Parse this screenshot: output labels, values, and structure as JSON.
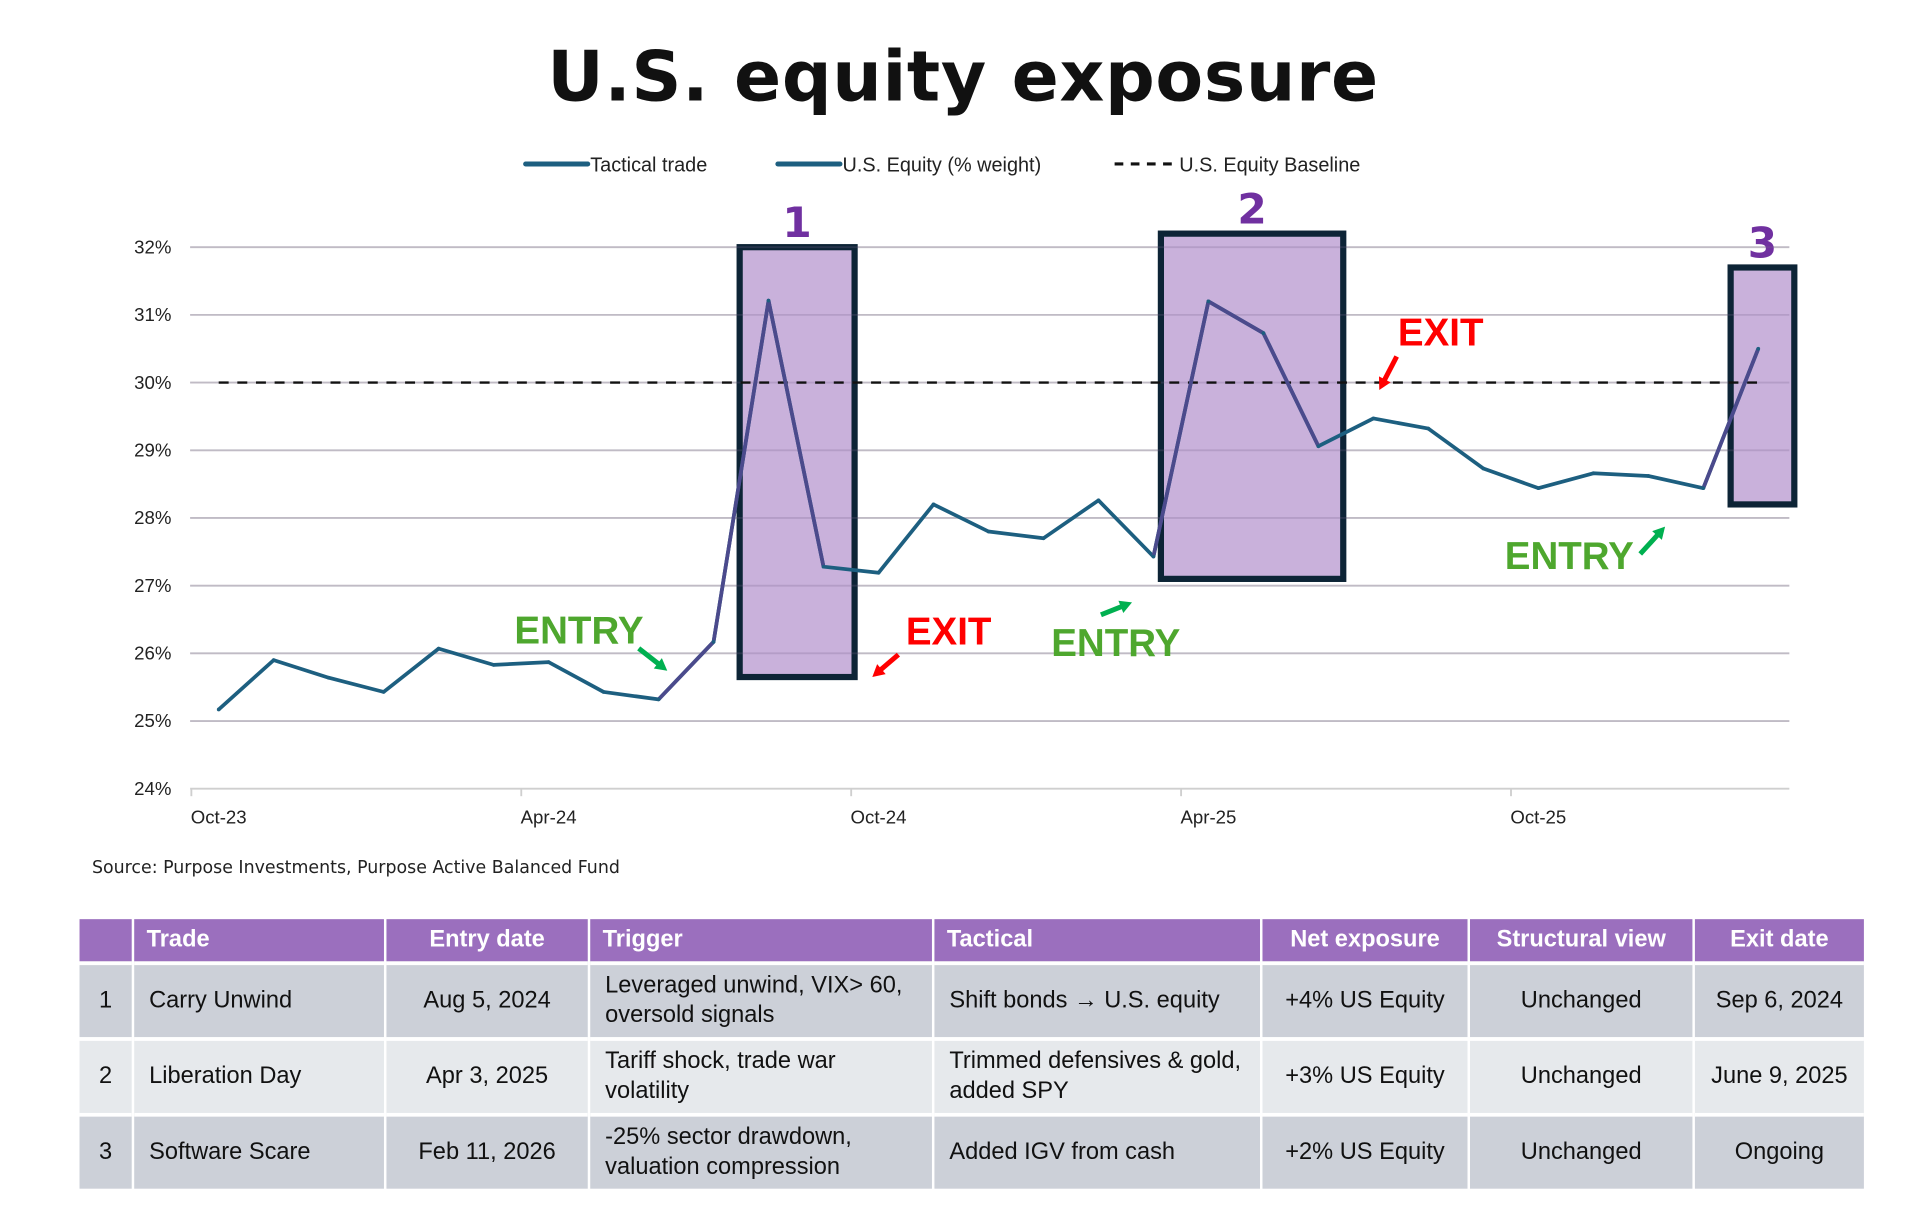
{
  "title": "U.S. equity exposure",
  "source": "Source: Purpose Investments, Purpose Active Balanced Fund",
  "chart_data": {
    "type": "line",
    "title": "U.S. equity exposure",
    "legend_position": "top",
    "legend": [
      "Tactical trade",
      "U.S. Equity (% weight)",
      "U.S. Equity Baseline"
    ],
    "colors": {
      "equity": "#1d5f80",
      "tactical": "#4b4a8c",
      "baseline": "#111111",
      "box_fill": "#c9b1db",
      "box_border": "#0d2436",
      "box_label": "#7030a0",
      "entry": "#4ea72e",
      "exit": "#ff0000",
      "entry_arrow": "#00b050"
    },
    "x_categories": [
      "Oct-23",
      "Nov-23",
      "Dec-23",
      "Jan-24",
      "Feb-24",
      "Mar-24",
      "Apr-24",
      "May-24",
      "Jun-24",
      "Jul-24",
      "Aug-24",
      "Sep-24",
      "Oct-24",
      "Nov-24",
      "Dec-24",
      "Jan-25",
      "Feb-25",
      "Mar-25",
      "Apr-25",
      "May-25",
      "Jun-25",
      "Jul-25",
      "Aug-25",
      "Sep-25",
      "Oct-25",
      "Nov-25",
      "Dec-25",
      "Jan-26",
      "Feb-26"
    ],
    "x_tick_labels": [
      "Oct-23",
      "Apr-24",
      "Oct-24",
      "Apr-25",
      "Oct-25"
    ],
    "y_ticks": [
      "24%",
      "25%",
      "26%",
      "27%",
      "28%",
      "29%",
      "30%",
      "31%",
      "32%"
    ],
    "ylim": [
      24,
      32
    ],
    "grid": true,
    "series": [
      {
        "name": "U.S. Equity (% weight)",
        "values": [
          25.17,
          25.9,
          25.64,
          25.43,
          26.07,
          25.83,
          25.87,
          25.43,
          25.32,
          26.17,
          31.21,
          27.28,
          27.19,
          28.2,
          27.8,
          27.7,
          28.26,
          27.43,
          31.2,
          30.73,
          29.06,
          29.47,
          29.32,
          28.73,
          28.44,
          28.66,
          28.62,
          28.44,
          30.5
        ]
      },
      {
        "name": "Tactical trade",
        "values": [
          null,
          null,
          null,
          null,
          null,
          null,
          null,
          null,
          25.32,
          26.17,
          31.21,
          27.28,
          null,
          null,
          null,
          null,
          null,
          27.43,
          31.2,
          30.73,
          29.06,
          null,
          null,
          null,
          null,
          null,
          null,
          28.44,
          30.5
        ]
      },
      {
        "name": "U.S. Equity Baseline",
        "values": [
          30,
          30,
          30,
          30,
          30,
          30,
          30,
          30,
          30,
          30,
          30,
          30,
          30,
          30,
          30,
          30,
          30,
          30,
          30,
          30,
          30,
          30,
          30,
          30,
          30,
          30,
          30,
          30,
          30
        ]
      }
    ],
    "highlight_boxes": [
      {
        "label": "1",
        "from": "Jul-24",
        "to": "Sep-24",
        "y_range": [
          25.65,
          32.0
        ]
      },
      {
        "label": "2",
        "from": "Mar-25",
        "to": "Jun-25",
        "y_range": [
          27.1,
          32.2
        ]
      },
      {
        "label": "3",
        "from": "Jan-26",
        "to": "Feb-26",
        "y_range": [
          28.2,
          31.7
        ]
      }
    ],
    "annotations": [
      {
        "text": "ENTRY",
        "type": "entry"
      },
      {
        "text": "EXIT",
        "type": "exit"
      },
      {
        "text": "ENTRY",
        "type": "entry"
      },
      {
        "text": "EXIT",
        "type": "exit"
      },
      {
        "text": "ENTRY",
        "type": "entry"
      }
    ]
  },
  "table": {
    "headers": [
      "",
      "Trade",
      "Entry date",
      "Trigger",
      "Tactical",
      "Net exposure",
      "Structural view",
      "Exit date"
    ],
    "rows": [
      [
        "1",
        "Carry Unwind",
        "Aug 5, 2024",
        "Leveraged unwind, VIX> 60, oversold signals",
        "Shift bonds → U.S. equity",
        "+4% US Equity",
        "Unchanged",
        "Sep 6, 2024"
      ],
      [
        "2",
        "Liberation Day",
        "Apr 3, 2025",
        "Tariff shock, trade war volatility",
        "Trimmed defensives & gold, added SPY",
        "+3% US Equity",
        "Unchanged",
        "June 9, 2025"
      ],
      [
        "3",
        "Software Scare",
        "Feb 11, 2026",
        "-25% sector drawdown, valuation compression",
        "Added IGV from cash",
        "+2% US Equity",
        "Unchanged",
        "Ongoing"
      ]
    ]
  }
}
